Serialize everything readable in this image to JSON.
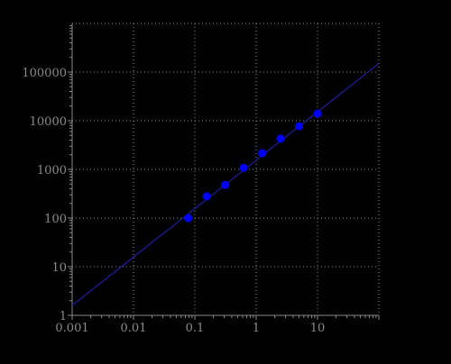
{
  "chart_data": {
    "type": "scatter",
    "title": "",
    "xlabel": "",
    "ylabel": "",
    "x_scale": "log",
    "y_scale": "log",
    "xlim": [
      0.001,
      100
    ],
    "ylim": [
      1,
      1000000
    ],
    "x_ticks": [
      0.001,
      0.01,
      0.1,
      1,
      10
    ],
    "x_tick_labels": [
      "0.001",
      "0.01",
      "0.1",
      "1",
      "10"
    ],
    "y_ticks": [
      1,
      10,
      100,
      1000,
      10000,
      100000
    ],
    "y_tick_labels": [
      "1",
      "10",
      "100",
      "1000",
      "10000",
      "100000"
    ],
    "grid": true,
    "legend": "none",
    "series": [
      {
        "kind": "points",
        "color": "#0000ff",
        "x": [
          0.078,
          0.156,
          0.3125,
          0.625,
          1.25,
          2.5,
          5,
          10
        ],
        "y": [
          100,
          280,
          480,
          1080,
          2150,
          4300,
          7700,
          14000
        ]
      },
      {
        "kind": "fit-line",
        "color": "#1a1a80",
        "x": [
          0.001,
          100
        ],
        "y": [
          1.6,
          150000
        ]
      }
    ],
    "colors": {
      "background": "#000000",
      "axis": "#8a8a8a",
      "grid": "#8a8a8a",
      "tick_label": "#8a8a8a"
    }
  }
}
